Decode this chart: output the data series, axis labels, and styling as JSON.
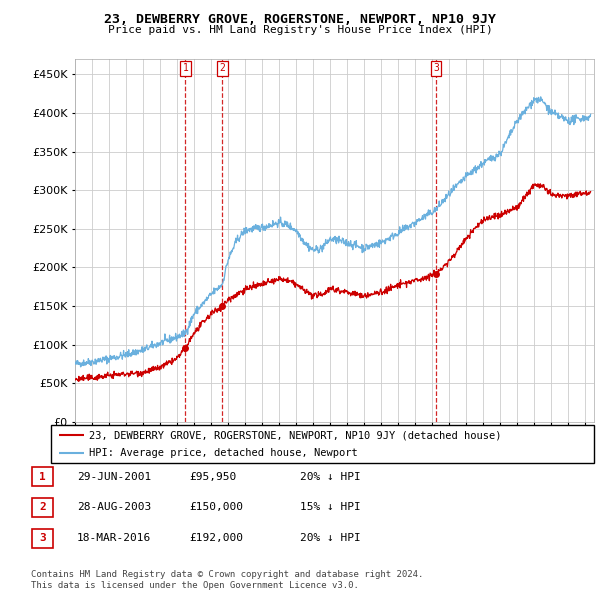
{
  "title": "23, DEWBERRY GROVE, ROGERSTONE, NEWPORT, NP10 9JY",
  "subtitle": "Price paid vs. HM Land Registry's House Price Index (HPI)",
  "ytick_values": [
    0,
    50000,
    100000,
    150000,
    200000,
    250000,
    300000,
    350000,
    400000,
    450000
  ],
  "ylim": [
    0,
    470000
  ],
  "xlim_start": 1995.0,
  "xlim_end": 2025.5,
  "hpi_color": "#6ab0de",
  "price_color": "#cc0000",
  "vline_color": "#cc0000",
  "grid_color": "#cccccc",
  "sales": [
    {
      "label": "1",
      "date": "29-JUN-2001",
      "year": 2001.49,
      "price": 95950,
      "pct": "20%",
      "dir": "↓"
    },
    {
      "label": "2",
      "date": "28-AUG-2003",
      "year": 2003.65,
      "price": 150000,
      "pct": "15%",
      "dir": "↓"
    },
    {
      "label": "3",
      "date": "18-MAR-2016",
      "year": 2016.21,
      "price": 192000,
      "pct": "20%",
      "dir": "↓"
    }
  ],
  "legend_price_label": "23, DEWBERRY GROVE, ROGERSTONE, NEWPORT, NP10 9JY (detached house)",
  "legend_hpi_label": "HPI: Average price, detached house, Newport",
  "footnote1": "Contains HM Land Registry data © Crown copyright and database right 2024.",
  "footnote2": "This data is licensed under the Open Government Licence v3.0."
}
